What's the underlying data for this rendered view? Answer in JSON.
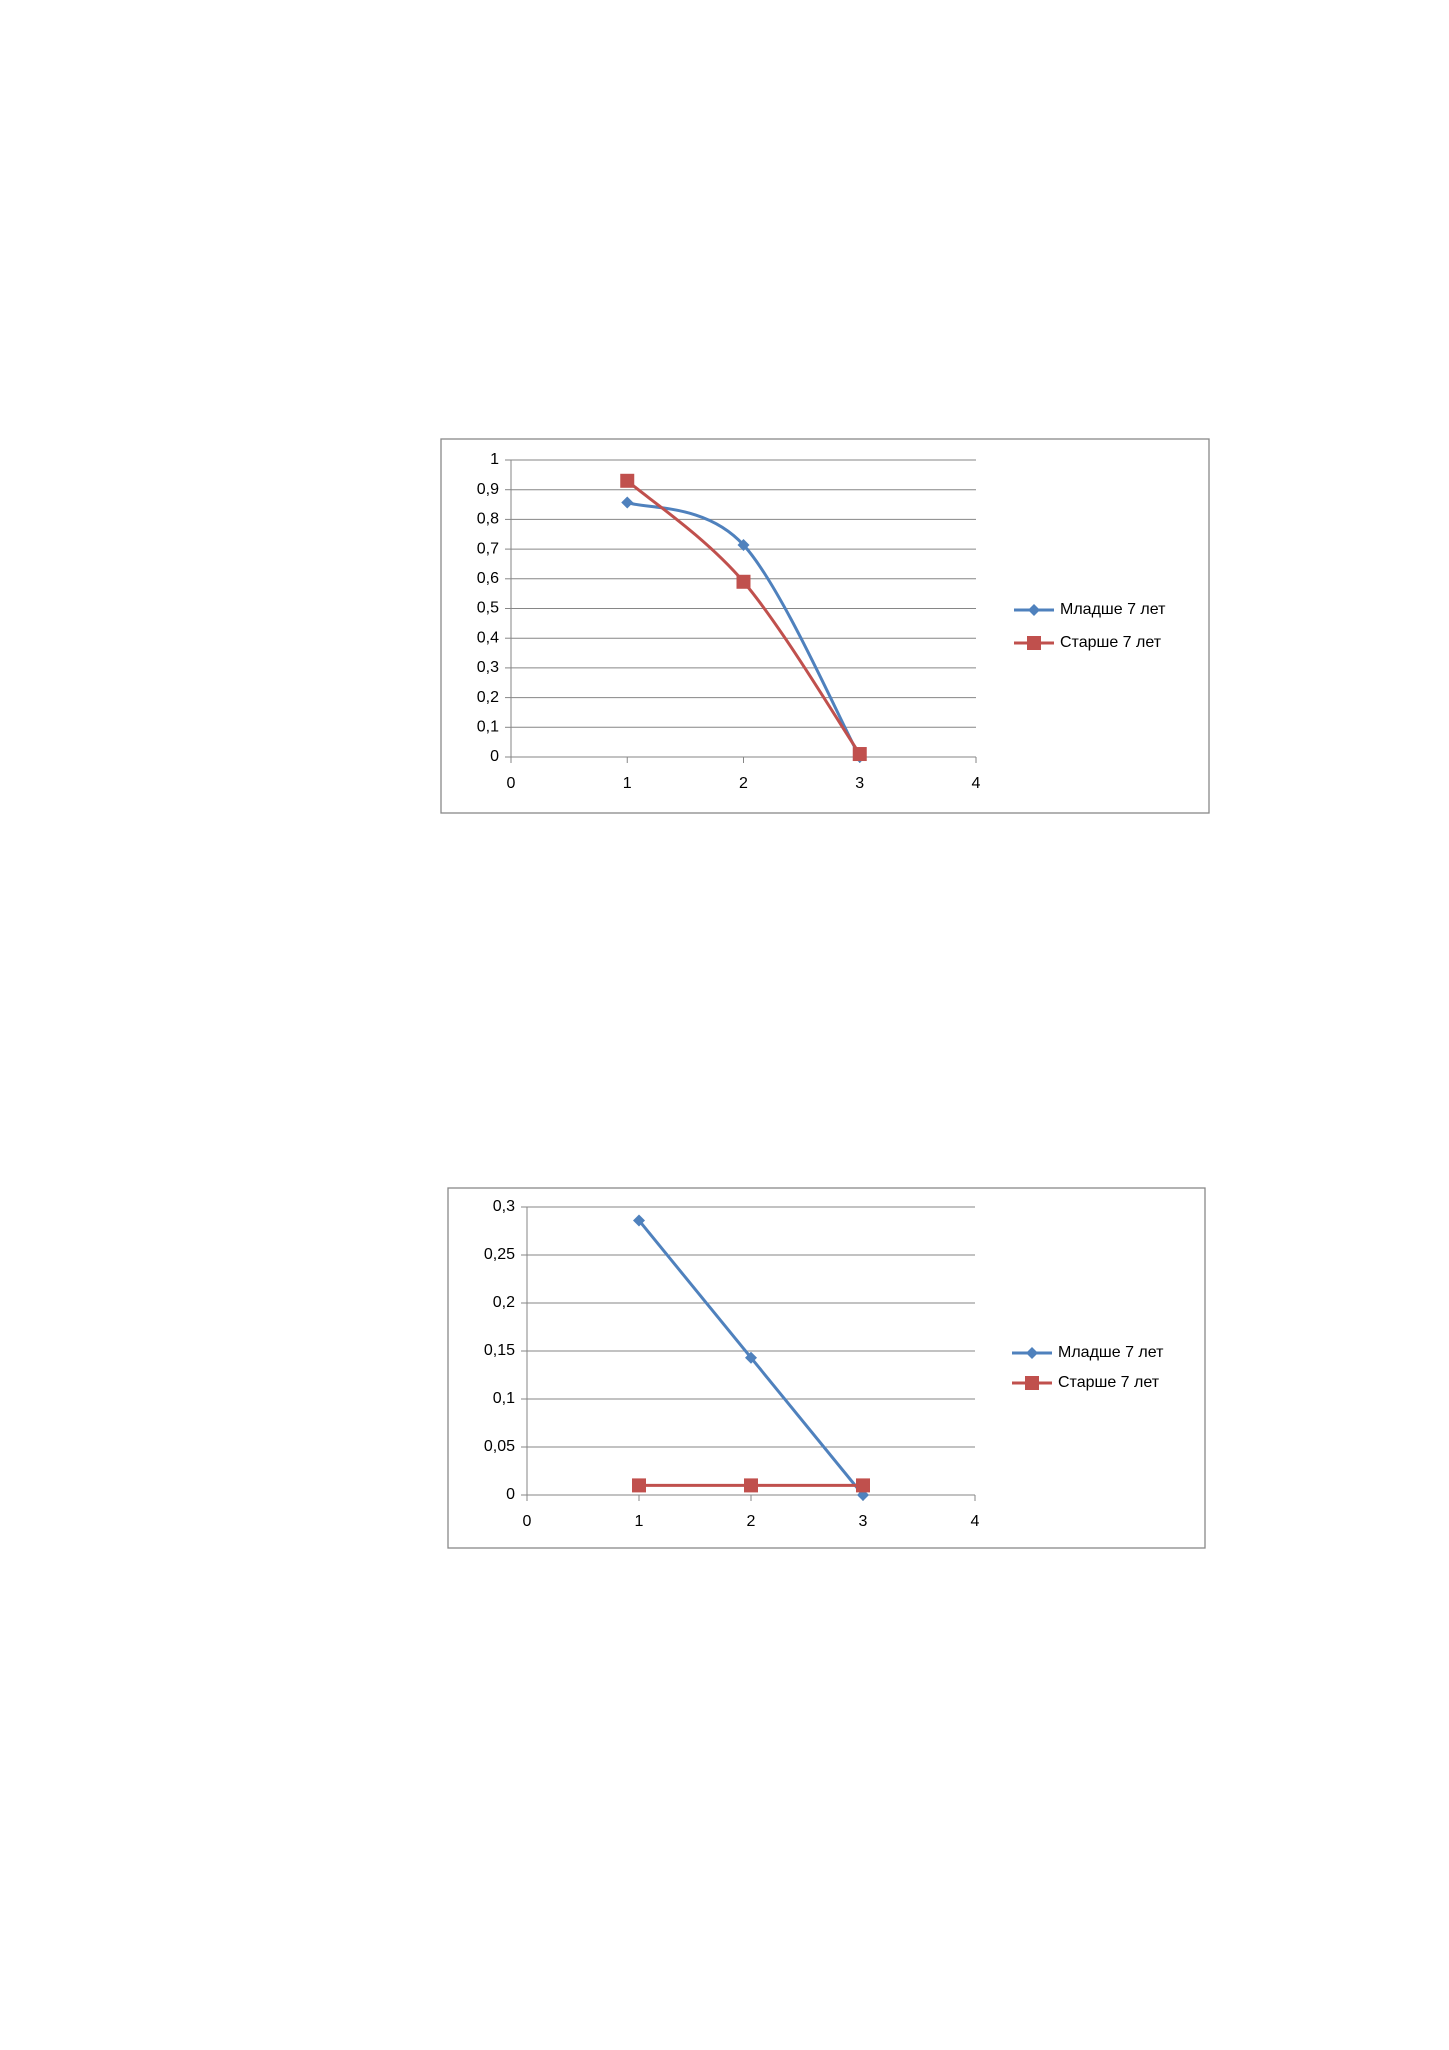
{
  "chart_data": [
    {
      "type": "line",
      "smooth": true,
      "grid": true,
      "legend": "right",
      "x": [
        1,
        2,
        3
      ],
      "xlim": [
        0,
        4
      ],
      "xticks": [
        0,
        1,
        2,
        3,
        4
      ],
      "ylim": [
        0,
        1
      ],
      "yticks": [
        0,
        {
          "value": 0.1,
          "label": "0,1"
        },
        {
          "value": 0.2,
          "label": "0,2"
        },
        {
          "value": 0.3,
          "label": "0,3"
        },
        {
          "value": 0.4,
          "label": "0,4"
        },
        {
          "value": 0.5,
          "label": "0,5"
        },
        {
          "value": 0.6,
          "label": "0,6"
        },
        {
          "value": 0.7,
          "label": "0,7"
        },
        {
          "value": 0.8,
          "label": "0,8"
        },
        {
          "value": 0.9,
          "label": "0,9"
        },
        1
      ],
      "series": [
        {
          "name": "Младше 7 лет",
          "color": "#4f81bd",
          "marker": "diamond",
          "values": [
            0.857,
            0.714,
            0
          ]
        },
        {
          "name": "Старше 7 лет",
          "color": "#c0504d",
          "marker": "square",
          "values": [
            0.93,
            0.59,
            0.01
          ]
        }
      ]
    },
    {
      "type": "line",
      "smooth": false,
      "grid": true,
      "legend": "right",
      "x": [
        1,
        2,
        3
      ],
      "xlim": [
        0,
        4
      ],
      "xticks": [
        0,
        1,
        2,
        3,
        4
      ],
      "ylim": [
        0,
        0.3
      ],
      "yticks": [
        0,
        {
          "value": 0.05,
          "label": "0,05"
        },
        {
          "value": 0.1,
          "label": "0,1"
        },
        {
          "value": 0.15,
          "label": "0,15"
        },
        {
          "value": 0.2,
          "label": "0,2"
        },
        {
          "value": 0.25,
          "label": "0,25"
        },
        {
          "value": 0.3,
          "label": "0,3"
        }
      ],
      "series": [
        {
          "name": "Младше 7 лет",
          "color": "#4f81bd",
          "marker": "diamond",
          "values": [
            0.286,
            0.143,
            0
          ]
        },
        {
          "name": "Старше 7 лет",
          "color": "#c0504d",
          "marker": "square",
          "values": [
            0.01,
            0.01,
            0.01
          ]
        }
      ]
    }
  ]
}
